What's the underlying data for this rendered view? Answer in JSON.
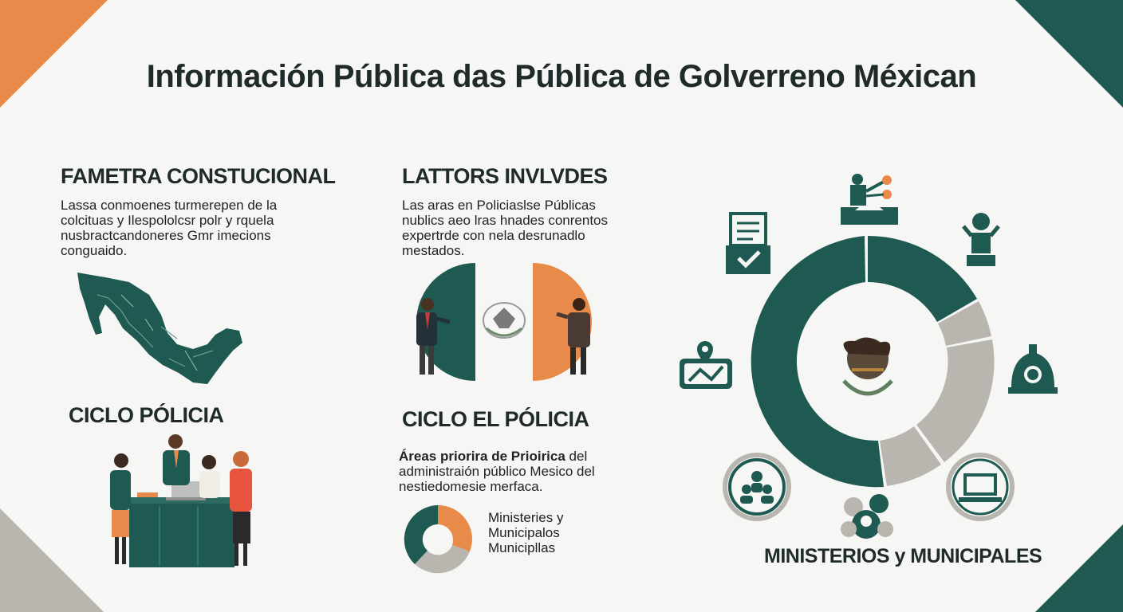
{
  "page": {
    "title": "Información Pública das Pública de Golverreno Méxican"
  },
  "colors": {
    "teal": "#1f5a52",
    "orange": "#e88a4a",
    "gray": "#b9b6b0",
    "background": "#f6f6f4"
  },
  "sections": {
    "left_top": {
      "heading": "FAMETRA CONSTUCIONAL",
      "body": "Lassa conmoenes turmerepen de la\ncolcituas y Ilespololcsr polr y rquela\nnusbractcandoneres Gmr imecions\nconguaido."
    },
    "middle_top": {
      "heading": "LATTORS INVLVDES",
      "body": "Las aras en Policiaslse Públicas\nnublics aeo lras hnades conrentos\nexpertrde con nela desrunadlo\nmestados."
    },
    "left_bottom": {
      "heading": "CICLO PÓLICIA"
    },
    "middle_bottom": {
      "heading": "CICLO EL PÓLICIA",
      "body_bold": "Áreas priorira de Prioirica",
      "body_rest": " del\nadministraión público Mesico del\nnestiedomesie merfaca.",
      "donut_label": "Ministeries y\nMunicipalos\nMunicipllas",
      "donut_icon": "donut-chart-icon"
    },
    "right": {
      "caption": "MINISTERIOS y MUNICIPALES",
      "ring_icons": [
        "podium-speaker-icon",
        "person-figure-icon",
        "bell-person-icon",
        "laptop-icon",
        "group-circle-icon",
        "people-group-icon",
        "map-location-icon",
        "ballot-box-icon"
      ],
      "center_icon": "mexican-eagle-emblem-icon"
    }
  }
}
